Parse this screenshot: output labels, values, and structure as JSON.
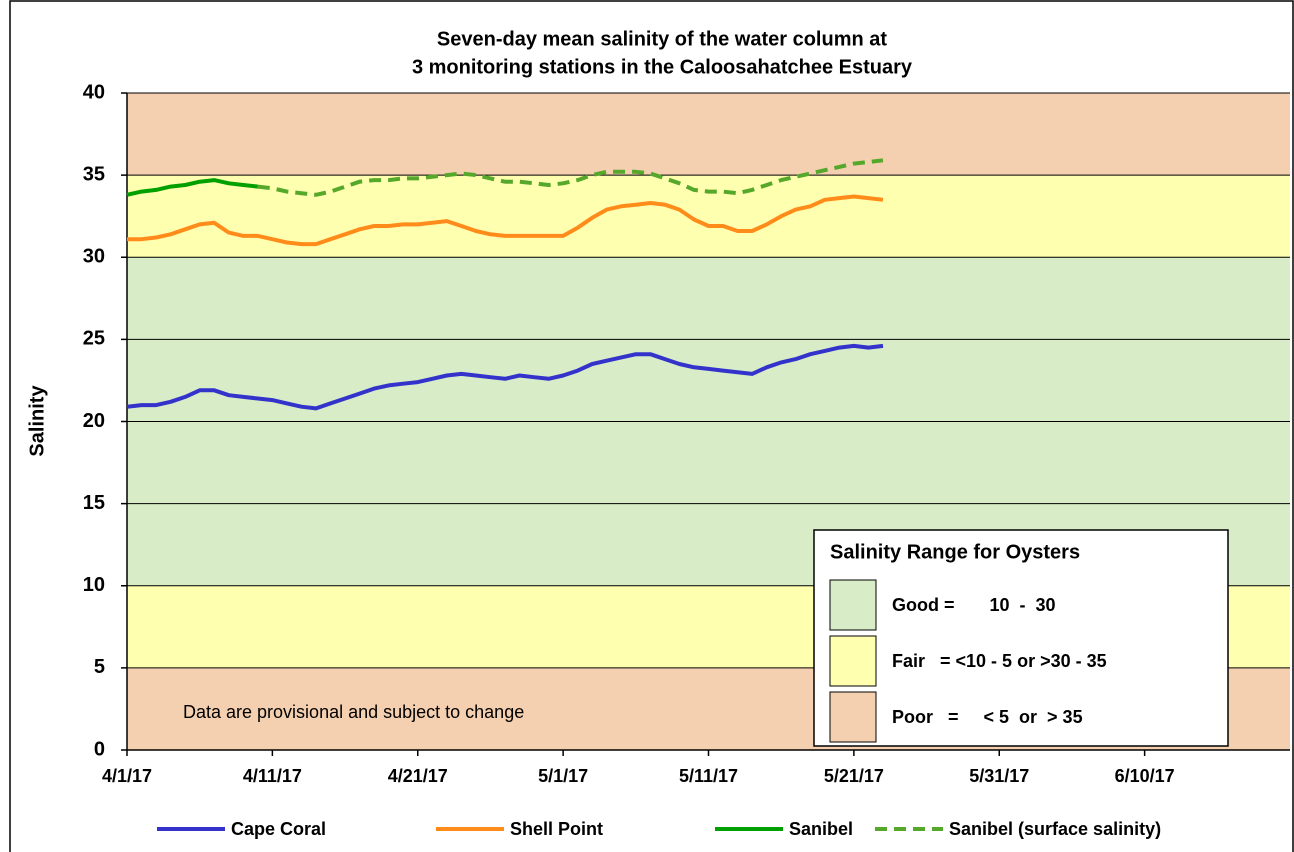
{
  "chart_data": {
    "type": "line",
    "title": [
      "Seven-day mean salinity of the water column at",
      "3 monitoring stations in the Caloosahatchee Estuary"
    ],
    "y_label": "Salinity",
    "annotation": "Data are provisional and subject to change",
    "x": [
      "4/1/17",
      "4/2/17",
      "4/3/17",
      "4/4/17",
      "4/5/17",
      "4/6/17",
      "4/7/17",
      "4/8/17",
      "4/9/17",
      "4/10/17",
      "4/11/17",
      "4/12/17",
      "4/13/17",
      "4/14/17",
      "4/15/17",
      "4/16/17",
      "4/17/17",
      "4/18/17",
      "4/19/17",
      "4/20/17",
      "4/21/17",
      "4/22/17",
      "4/23/17",
      "4/24/17",
      "4/25/17",
      "4/26/17",
      "4/27/17",
      "4/28/17",
      "4/29/17",
      "4/30/17",
      "5/1/17",
      "5/2/17",
      "5/3/17",
      "5/4/17",
      "5/5/17",
      "5/6/17",
      "5/7/17",
      "5/8/17",
      "5/9/17",
      "5/10/17",
      "5/11/17",
      "5/12/17",
      "5/13/17",
      "5/14/17",
      "5/15/17",
      "5/16/17",
      "5/17/17",
      "5/18/17",
      "5/19/17",
      "5/20/17",
      "5/21/17",
      "5/22/17",
      "5/23/17"
    ],
    "series": [
      {
        "name": "Cape Coral",
        "color": "#3333cc",
        "dashed": false,
        "values": [
          20.9,
          21.0,
          21.0,
          21.2,
          21.5,
          21.9,
          21.9,
          21.6,
          21.5,
          21.4,
          21.3,
          21.1,
          20.9,
          20.8,
          21.1,
          21.4,
          21.7,
          22.0,
          22.2,
          22.3,
          22.4,
          22.6,
          22.8,
          22.9,
          22.8,
          22.7,
          22.6,
          22.8,
          22.7,
          22.6,
          22.8,
          23.1,
          23.5,
          23.7,
          23.9,
          24.1,
          24.1,
          23.8,
          23.5,
          23.3,
          23.2,
          23.1,
          23.0,
          22.9,
          23.3,
          23.6,
          23.8,
          24.1,
          24.3,
          24.5,
          24.6,
          24.5,
          24.6
        ]
      },
      {
        "name": "Shell Point",
        "color": "#ff8c1a",
        "dashed": false,
        "values": [
          31.1,
          31.1,
          31.2,
          31.4,
          31.7,
          32.0,
          32.1,
          31.5,
          31.3,
          31.3,
          31.1,
          30.9,
          30.8,
          30.8,
          31.1,
          31.4,
          31.7,
          31.9,
          31.9,
          32.0,
          32.0,
          32.1,
          32.2,
          31.9,
          31.6,
          31.4,
          31.3,
          31.3,
          31.3,
          31.3,
          31.3,
          31.8,
          32.4,
          32.9,
          33.1,
          33.2,
          33.3,
          33.2,
          32.9,
          32.3,
          31.9,
          31.9,
          31.6,
          31.6,
          32.0,
          32.5,
          32.9,
          33.1,
          33.5,
          33.6,
          33.7,
          33.6,
          33.5
        ]
      },
      {
        "name": "Sanibel",
        "color": "#00a000",
        "dashed": false,
        "values": [
          33.8,
          34.0,
          34.1,
          34.3,
          34.4,
          34.6,
          34.7,
          34.5,
          34.4,
          34.3,
          null,
          null,
          null,
          null,
          null,
          null,
          null,
          null,
          null,
          null,
          null,
          null,
          null,
          null,
          null,
          null,
          null,
          null,
          null,
          null,
          null,
          null,
          null,
          null,
          null,
          null,
          null,
          null,
          null,
          null,
          null,
          null,
          null,
          null,
          null,
          null,
          null,
          null,
          null,
          null,
          null,
          null,
          null
        ]
      },
      {
        "name": "Sanibel (surface salinity)",
        "color": "#55a82a",
        "dashed": true,
        "values": [
          null,
          null,
          null,
          null,
          null,
          null,
          null,
          null,
          null,
          34.3,
          34.2,
          34.0,
          33.9,
          33.8,
          34.0,
          34.3,
          34.6,
          34.7,
          34.7,
          34.8,
          34.8,
          34.9,
          35.0,
          35.1,
          35.0,
          34.8,
          34.6,
          34.6,
          34.5,
          34.4,
          34.5,
          34.7,
          35.0,
          35.2,
          35.2,
          35.2,
          35.1,
          34.8,
          34.5,
          34.1,
          34.0,
          34.0,
          33.9,
          34.1,
          34.4,
          34.7,
          34.9,
          35.1,
          35.3,
          35.5,
          35.7,
          35.8,
          35.9
        ]
      }
    ],
    "xlim": [
      "4/1/17",
      "6/20/17"
    ],
    "xticks": [
      "4/1/17",
      "4/11/17",
      "4/21/17",
      "5/1/17",
      "5/11/17",
      "5/21/17",
      "5/31/17",
      "6/10/17"
    ],
    "ylim": [
      0,
      40
    ],
    "yticks": [
      0,
      5,
      10,
      15,
      20,
      25,
      30,
      35,
      40
    ],
    "grid": true,
    "bands": [
      {
        "range": [
          0,
          5
        ],
        "color": "#f5d0b0"
      },
      {
        "range": [
          5,
          10
        ],
        "color": "#ffffb0"
      },
      {
        "range": [
          10,
          30
        ],
        "color": "#d9ecc8"
      },
      {
        "range": [
          30,
          35
        ],
        "color": "#ffffb0"
      },
      {
        "range": [
          35,
          40
        ],
        "color": "#f5d0b0"
      }
    ],
    "range_legend": {
      "title": "Salinity Range for Oysters",
      "items": [
        {
          "label": "Good =       10  -  30",
          "color": "#d9ecc8"
        },
        {
          "label": "Fair   = <10 - 5 or >30 - 35",
          "color": "#ffffb0"
        },
        {
          "label": "Poor   =     < 5  or  > 35",
          "color": "#f5d0b0"
        }
      ]
    }
  }
}
